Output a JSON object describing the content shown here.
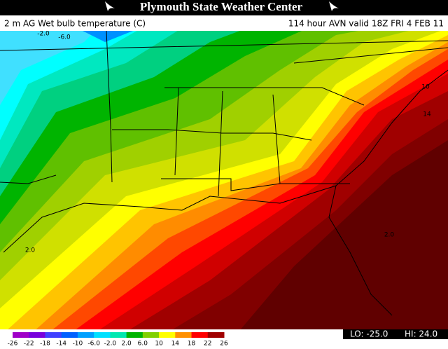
{
  "header": {
    "title": "Plymouth State Weather Center",
    "left": "2 m AG Wet bulb temperature (C)",
    "right": "114 hour AVN valid 18Z FRI 4 FEB 11"
  },
  "map": {
    "labels": [
      "-2.0",
      "-6.0",
      "10",
      "14",
      "2.0",
      "2.0"
    ]
  },
  "legend": {
    "labels": [
      "-26",
      "-22",
      "-18",
      "-14",
      "-10",
      "-6.0",
      "-2.0",
      "2.0",
      "6.0",
      "10",
      "14",
      "18",
      "22",
      "26"
    ],
    "colors": [
      "#a000c8",
      "#7800dc",
      "#4040ff",
      "#0060ff",
      "#00a0ff",
      "#00e0ff",
      "#00e8b0",
      "#00b400",
      "#80d000",
      "#ffff00",
      "#ff9000",
      "#ff0000",
      "#a00000"
    ]
  },
  "footer": {
    "lo": "LO: -25.0",
    "hi": "HI: 24.0"
  }
}
